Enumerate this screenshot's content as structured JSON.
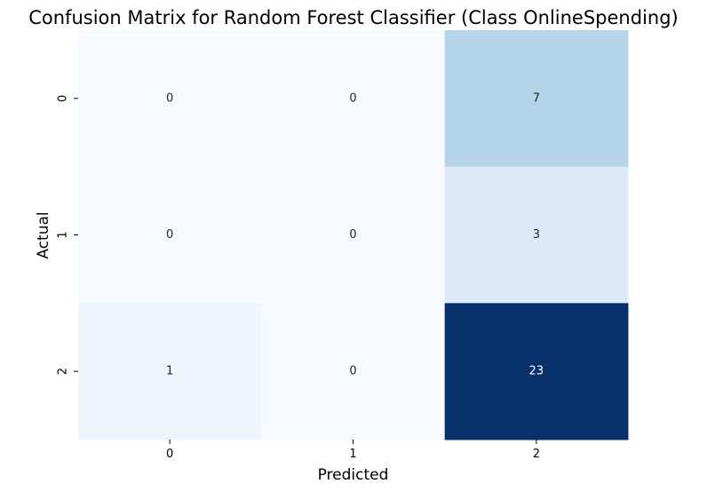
{
  "chart_data": {
    "type": "heatmap",
    "title": "Confusion Matrix for Random Forest Classifier (Class OnlineSpending)",
    "xlabel": "Predicted",
    "ylabel": "Actual",
    "x_categories": [
      "0",
      "1",
      "2"
    ],
    "y_categories": [
      "0",
      "1",
      "2"
    ],
    "values": [
      [
        0,
        0,
        7
      ],
      [
        0,
        0,
        3
      ],
      [
        1,
        0,
        23
      ]
    ],
    "colormap": "Blues",
    "color_range": [
      0,
      23
    ],
    "colorbar": false,
    "grid": false
  }
}
